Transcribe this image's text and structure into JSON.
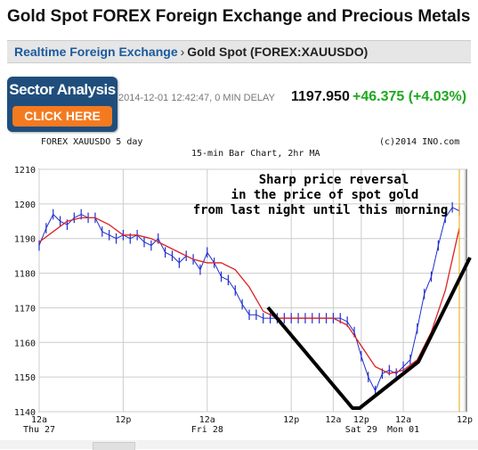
{
  "page": {
    "title": "Gold Spot FOREX Foreign Exchange and Precious Metals"
  },
  "breadcrumb": {
    "link": "Realtime Foreign Exchange",
    "separator": "›",
    "current": "Gold Spot (FOREX:XAUUSDO)"
  },
  "sector_badge": {
    "title": "Sector Analysis",
    "cta": "CLICK HERE"
  },
  "quote": {
    "timestamp": "2014-12-01 12:42:47, 0 MIN DELAY",
    "price": "1197.950",
    "change": "+46.375 (+4.03%)"
  },
  "colors": {
    "link": "#1a5a9e",
    "badge_bg": "#1f4e7d",
    "badge_cta": "#f47a20",
    "positive": "#1fa81f",
    "price_bars": "#1f2fcc",
    "moving_average": "#dd2222",
    "current_marker": "#e8a800",
    "annotation": "#000000"
  },
  "chart_data": {
    "type": "line",
    "header_left": "FOREX XAUUSDO 5 day",
    "header_right": "(c)2014 INO.com",
    "subtitle": "15-min Bar Chart, 2hr MA",
    "annotation": [
      "Sharp price reversal",
      "in the price of spot gold",
      "from last night until this morning"
    ],
    "ylim": [
      1140,
      1210
    ],
    "y_ticks": [
      1210,
      1200,
      1190,
      1180,
      1170,
      1160,
      1150,
      1140
    ],
    "x_range": [
      0,
      120
    ],
    "x_ticks": [
      {
        "x": 0,
        "label": "12a",
        "sub": "Thu 27"
      },
      {
        "x": 24,
        "label": "12p",
        "sub": ""
      },
      {
        "x": 48,
        "label": "12a",
        "sub": "Fri 28"
      },
      {
        "x": 72,
        "label": "12p",
        "sub": ""
      },
      {
        "x": 84,
        "label": "12a",
        "sub": ""
      },
      {
        "x": 92,
        "label": "12p",
        "sub": "Sat 29"
      },
      {
        "x": 104,
        "label": "12a",
        "sub": "Mon 01"
      },
      {
        "x": 128,
        "label": "12p",
        "sub": ""
      }
    ],
    "grid": true,
    "series": [
      {
        "type": "bar",
        "x": [
          0,
          2,
          4,
          6,
          8,
          10,
          12,
          14,
          16,
          18,
          20,
          22,
          24,
          26,
          28,
          30,
          32,
          34,
          36,
          38,
          40,
          42,
          44,
          46,
          48,
          50,
          52,
          54,
          56,
          58,
          60,
          62,
          64,
          66,
          68,
          70,
          72,
          74,
          76,
          78,
          80,
          82,
          84,
          86,
          88,
          90,
          92,
          94,
          96,
          98,
          100,
          102,
          104,
          106,
          108,
          110,
          112,
          114,
          116,
          118,
          120
        ],
        "values": [
          1188,
          1193,
          1197,
          1195,
          1194,
          1196,
          1197,
          1196,
          1196,
          1192,
          1191,
          1190,
          1191,
          1190,
          1191,
          1189,
          1188,
          1190,
          1186,
          1185,
          1183,
          1185,
          1184,
          1181,
          1186,
          1183,
          1179,
          1178,
          1175,
          1171,
          1168,
          1168,
          1167,
          1167,
          1167,
          1167,
          1167,
          1167,
          1167,
          1167,
          1167,
          1167,
          1167,
          1167,
          1166,
          1163,
          1156,
          1150,
          1146,
          1151,
          1152,
          1151,
          1153,
          1155,
          1164,
          1174,
          1179,
          1188,
          1196,
          1199,
          1198
        ]
      },
      {
        "type": "line",
        "x": [
          0,
          4,
          8,
          12,
          16,
          20,
          24,
          28,
          32,
          36,
          40,
          44,
          48,
          52,
          56,
          60,
          64,
          68,
          72,
          76,
          80,
          84,
          88,
          92,
          96,
          100,
          104,
          108,
          112,
          116,
          120
        ],
        "values": [
          1189,
          1192,
          1195,
          1196,
          1196,
          1194,
          1191,
          1191,
          1190,
          1188,
          1186,
          1184,
          1183,
          1183,
          1181,
          1176,
          1169,
          1167,
          1167,
          1167,
          1167,
          1167,
          1165,
          1159,
          1153,
          1151,
          1152,
          1155,
          1163,
          1175,
          1193
        ]
      }
    ]
  }
}
